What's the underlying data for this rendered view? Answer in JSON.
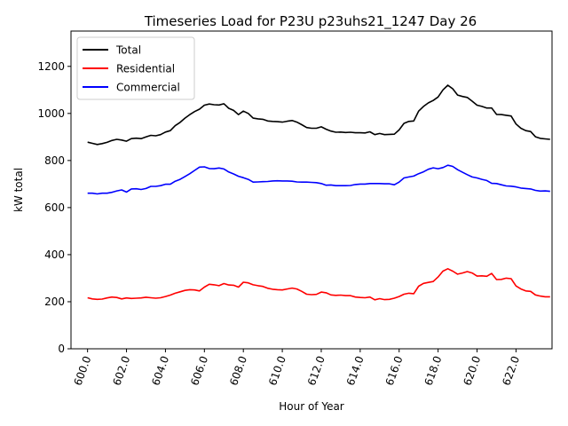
{
  "chart_data": {
    "type": "line",
    "title": "Timeseries Load for P23U p23uhs21_1247  Day 26",
    "xlabel": "Hour of Year",
    "ylabel": "kW total",
    "xlim": [
      599.15,
      623.85
    ],
    "ylim": [
      0,
      1350
    ],
    "x_ticks": [
      600,
      602,
      604,
      606,
      608,
      610,
      612,
      614,
      616,
      618,
      620,
      622
    ],
    "x_tick_labels": [
      "600.0",
      "602.0",
      "604.0",
      "606.0",
      "608.0",
      "610.0",
      "612.0",
      "614.0",
      "616.0",
      "618.0",
      "620.0",
      "622.0"
    ],
    "y_ticks": [
      0,
      200,
      400,
      600,
      800,
      1000,
      1200
    ],
    "y_tick_labels": [
      "0",
      "200",
      "400",
      "600",
      "800",
      "1000",
      "1200"
    ],
    "legend_position": "upper-left",
    "grid": false,
    "x": [
      600.0,
      600.25,
      600.5,
      600.75,
      601.0,
      601.25,
      601.5,
      601.75,
      602.0,
      602.25,
      602.5,
      602.75,
      603.0,
      603.25,
      603.5,
      603.75,
      604.0,
      604.25,
      604.5,
      604.75,
      605.0,
      605.25,
      605.5,
      605.75,
      606.0,
      606.25,
      606.5,
      606.75,
      607.0,
      607.25,
      607.5,
      607.75,
      608.0,
      608.25,
      608.5,
      608.75,
      609.0,
      609.25,
      609.5,
      609.75,
      610.0,
      610.25,
      610.5,
      610.75,
      611.0,
      611.25,
      611.5,
      611.75,
      612.0,
      612.25,
      612.5,
      612.75,
      613.0,
      613.25,
      613.5,
      613.75,
      614.0,
      614.25,
      614.5,
      614.75,
      615.0,
      615.25,
      615.5,
      615.75,
      616.0,
      616.25,
      616.5,
      616.75,
      617.0,
      617.25,
      617.5,
      617.75,
      618.0,
      618.25,
      618.5,
      618.75,
      619.0,
      619.25,
      619.5,
      619.75,
      620.0,
      620.25,
      620.5,
      620.75,
      621.0,
      621.25,
      621.5,
      621.75,
      622.0,
      622.25,
      622.5,
      622.75,
      623.0,
      623.25,
      623.5,
      623.75
    ],
    "series": [
      {
        "name": "Total",
        "color": "#000000",
        "values": [
          878,
          873,
          868,
          872,
          877,
          885,
          890,
          887,
          882,
          893,
          895,
          893,
          900,
          907,
          905,
          910,
          921,
          927,
          948,
          962,
          980,
          995,
          1008,
          1018,
          1035,
          1040,
          1037,
          1036,
          1041,
          1022,
          1013,
          995,
          1010,
          1000,
          980,
          977,
          975,
          968,
          966,
          965,
          963,
          967,
          970,
          963,
          952,
          940,
          937,
          937,
          943,
          933,
          925,
          920,
          921,
          919,
          920,
          918,
          918,
          917,
          922,
          910,
          915,
          910,
          911,
          912,
          930,
          958,
          966,
          968,
          1010,
          1030,
          1045,
          1055,
          1070,
          1100,
          1120,
          1105,
          1078,
          1072,
          1068,
          1052,
          1035,
          1030,
          1023,
          1023,
          996,
          995,
          992,
          989,
          955,
          937,
          927,
          923,
          901,
          894,
          892,
          890
        ]
      },
      {
        "name": "Residential",
        "color": "#ff0000",
        "values": [
          217,
          212,
          210,
          211,
          216,
          220,
          218,
          212,
          216,
          214,
          215,
          216,
          219,
          217,
          215,
          217,
          222,
          228,
          236,
          242,
          248,
          251,
          250,
          246,
          262,
          274,
          272,
          268,
          277,
          271,
          270,
          262,
          283,
          280,
          272,
          268,
          265,
          257,
          253,
          251,
          250,
          254,
          258,
          254,
          244,
          232,
          230,
          231,
          241,
          238,
          229,
          227,
          228,
          226,
          226,
          220,
          218,
          217,
          220,
          208,
          213,
          209,
          210,
          215,
          222,
          232,
          236,
          234,
          266,
          278,
          282,
          286,
          305,
          330,
          340,
          330,
          317,
          322,
          328,
          322,
          309,
          310,
          308,
          320,
          294,
          295,
          300,
          298,
          267,
          254,
          246,
          244,
          229,
          224,
          221,
          221
        ]
      },
      {
        "name": "Commercial",
        "color": "#0000ff",
        "values": [
          661,
          661,
          658,
          661,
          661,
          665,
          671,
          675,
          666,
          679,
          680,
          677,
          681,
          690,
          690,
          693,
          699,
          699,
          712,
          720,
          732,
          744,
          758,
          772,
          773,
          766,
          765,
          768,
          764,
          751,
          743,
          733,
          727,
          720,
          708,
          709,
          710,
          711,
          713,
          714,
          713,
          713,
          712,
          709,
          708,
          708,
          707,
          706,
          702,
          695,
          696,
          693,
          693,
          693,
          694,
          698,
          700,
          700,
          702,
          702,
          702,
          701,
          701,
          697,
          708,
          726,
          730,
          734,
          744,
          752,
          763,
          769,
          765,
          770,
          780,
          775,
          761,
          750,
          740,
          730,
          726,
          720,
          715,
          703,
          702,
          697,
          692,
          691,
          688,
          683,
          681,
          679,
          673,
          670,
          671,
          669
        ]
      }
    ]
  }
}
